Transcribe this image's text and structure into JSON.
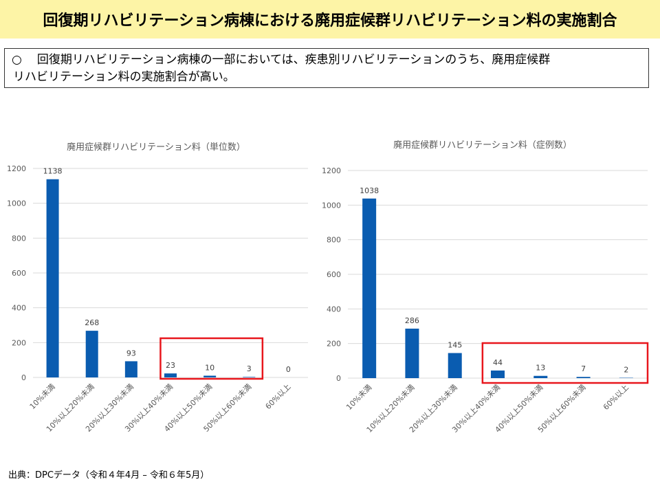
{
  "header": {
    "title": "回復期リハビリテーション病棟における廃用症候群リハビリテーション料の実施割合"
  },
  "summary": {
    "bullet": "○",
    "line1": "回復期リハビリテーション病棟の一部においては、疾患別リハビリテーションのうち、廃用症候群",
    "line2": "リハビリテーション料の実施割合が高い。"
  },
  "source": "出典：DPCデータ（令和４年4月 – 令和６年5月）",
  "colors": {
    "bar": "#0a5cb0",
    "highlight": "#e8161c",
    "grid": "#d9d9d9",
    "header_bg": "#fdf4a6"
  },
  "chart_data": [
    {
      "type": "bar",
      "title": "廃用症候群リハビリテーション料（単位数）",
      "categories": [
        "10%未満",
        "10%以上20%未満",
        "20%以上30%未満",
        "30%以上40%未満",
        "40%以上50%未満",
        "50%以上60%未満",
        "60%以上"
      ],
      "values": [
        1138,
        268,
        93,
        23,
        10,
        3,
        0
      ],
      "yticks": [
        0,
        200,
        400,
        600,
        800,
        1000,
        1200
      ],
      "ylim": [
        0,
        1200
      ],
      "grid": true,
      "highlight_range": [
        3,
        5
      ]
    },
    {
      "type": "bar",
      "title": "廃用症候群リハビリテーション料（症例数）",
      "categories": [
        "10%未満",
        "10%以上20%未満",
        "20%以上30%未満",
        "30%以上40%未満",
        "40%以上50%未満",
        "50%以上60%未満",
        "60%以上"
      ],
      "values": [
        1038,
        286,
        145,
        44,
        13,
        7,
        2
      ],
      "yticks": [
        0,
        200,
        400,
        600,
        800,
        1000,
        1200
      ],
      "ylim": [
        0,
        1200
      ],
      "grid": true,
      "highlight_range": [
        3,
        6
      ]
    }
  ]
}
